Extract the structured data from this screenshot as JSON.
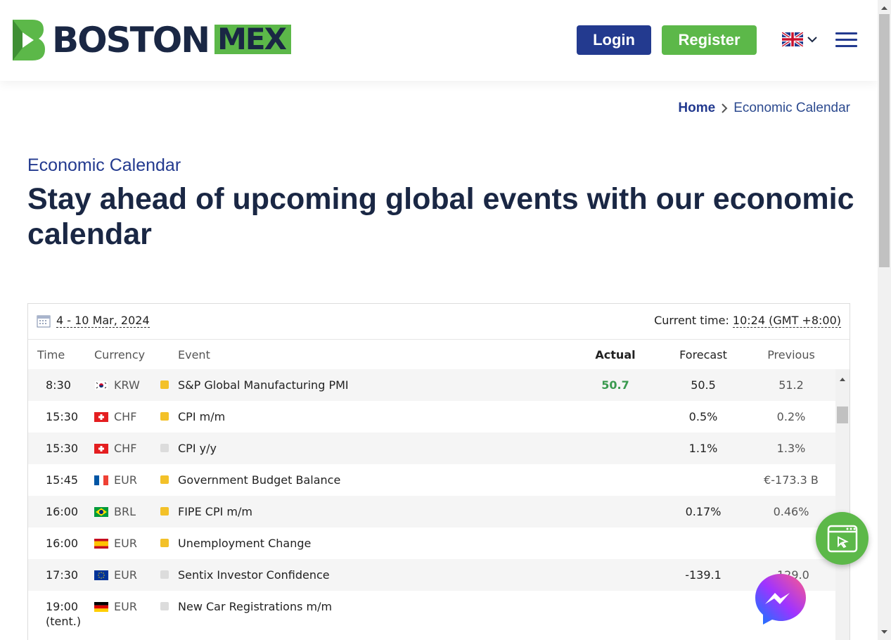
{
  "header": {
    "logo_text_1": "BOSTON",
    "logo_text_2": "MEX",
    "login_label": "Login",
    "register_label": "Register",
    "language_icon": "uk-flag-icon"
  },
  "breadcrumb": {
    "home": "Home",
    "separator": ">",
    "current": "Economic Calendar"
  },
  "page": {
    "eyebrow": "Economic Calendar",
    "title": "Stay ahead of upcoming global events with our economic calendar"
  },
  "calendar": {
    "date_range": "4 - 10 Mar, 2024",
    "current_time_label": "Current time:",
    "current_time_value": "10:24 (GMT +8:00)",
    "columns": {
      "time": "Time",
      "currency": "Currency",
      "event": "Event",
      "actual": "Actual",
      "forecast": "Forecast",
      "previous": "Previous"
    },
    "rows": [
      {
        "time": "8:30",
        "flag": "kr",
        "currency": "KRW",
        "importance": "medium",
        "event": "S&P Global Manufacturing PMI",
        "actual": "50.7",
        "forecast": "50.5",
        "previous": "51.2"
      },
      {
        "time": "15:30",
        "flag": "ch",
        "currency": "CHF",
        "importance": "medium",
        "event": "CPI m/m",
        "actual": "",
        "forecast": "0.5%",
        "previous": "0.2%"
      },
      {
        "time": "15:30",
        "flag": "ch",
        "currency": "CHF",
        "importance": "low",
        "event": "CPI y/y",
        "actual": "",
        "forecast": "1.1%",
        "previous": "1.3%"
      },
      {
        "time": "15:45",
        "flag": "fr",
        "currency": "EUR",
        "importance": "medium",
        "event": "Government Budget Balance",
        "actual": "",
        "forecast": "",
        "previous": "€-173.3 B"
      },
      {
        "time": "16:00",
        "flag": "br",
        "currency": "BRL",
        "importance": "medium",
        "event": "FIPE CPI m/m",
        "actual": "",
        "forecast": "0.17%",
        "previous": "0.46%"
      },
      {
        "time": "16:00",
        "flag": "es",
        "currency": "EUR",
        "importance": "medium",
        "event": "Unemployment Change",
        "actual": "",
        "forecast": "",
        "previous": ""
      },
      {
        "time": "17:30",
        "flag": "eu",
        "currency": "EUR",
        "importance": "low",
        "event": "Sentix Investor Confidence",
        "actual": "",
        "forecast": "-139.1",
        "previous": "-129.0"
      },
      {
        "time": "19:00",
        "time_note": "(tent.)",
        "flag": "de",
        "currency": "EUR",
        "importance": "low",
        "event": "New Car Registrations m/m",
        "actual": "",
        "forecast": "",
        "previous": "%"
      }
    ]
  },
  "colors": {
    "navy": "#1a2744",
    "blue": "#233a8f",
    "green": "#5cb849",
    "actual_green": "#3a9a4f"
  }
}
